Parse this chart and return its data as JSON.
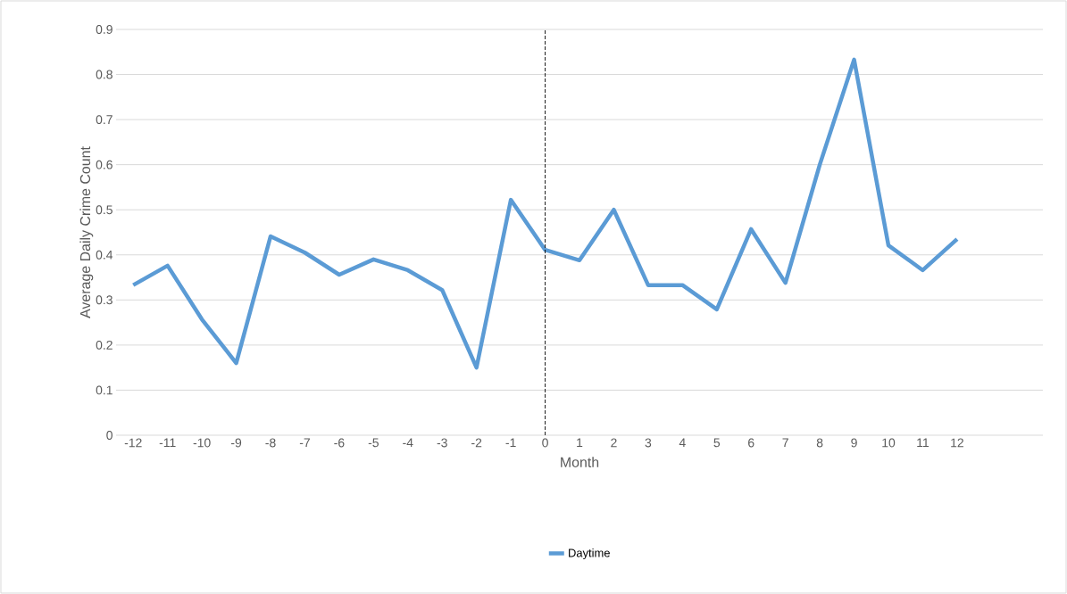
{
  "chart_data": {
    "type": "line",
    "xlabel": "Month",
    "ylabel": "Average Daily Crime Count",
    "x": [
      -12,
      -11,
      -10,
      -9,
      -8,
      -7,
      -6,
      -5,
      -4,
      -3,
      -2,
      -1,
      0,
      1,
      2,
      3,
      4,
      5,
      6,
      7,
      8,
      9,
      10,
      11,
      12
    ],
    "series": [
      {
        "name": "Daytime",
        "color": "#5b9bd5",
        "values": [
          0.333,
          0.376,
          0.257,
          0.16,
          0.441,
          0.405,
          0.356,
          0.39,
          0.366,
          0.322,
          0.15,
          0.522,
          0.411,
          0.388,
          0.5,
          0.333,
          0.333,
          0.279,
          0.457,
          0.338,
          0.6,
          0.833,
          0.421,
          0.366,
          0.435
        ]
      }
    ],
    "xlim": [
      -12.5,
      14.5
    ],
    "ylim": [
      0,
      0.9
    ],
    "xticks": [
      -12,
      -11,
      -10,
      -9,
      -8,
      -7,
      -6,
      -5,
      -4,
      -3,
      -2,
      -1,
      0,
      1,
      2,
      3,
      4,
      5,
      6,
      7,
      8,
      9,
      10,
      11,
      12
    ],
    "yticks": [
      0,
      0.1,
      0.2,
      0.3,
      0.4,
      0.5,
      0.6,
      0.7,
      0.8,
      0.9
    ],
    "ref_lines": [
      {
        "axis": "x",
        "value": 0,
        "color": "#000000",
        "line_style": "dashed"
      }
    ],
    "grid": "y",
    "legend": "bottom"
  }
}
